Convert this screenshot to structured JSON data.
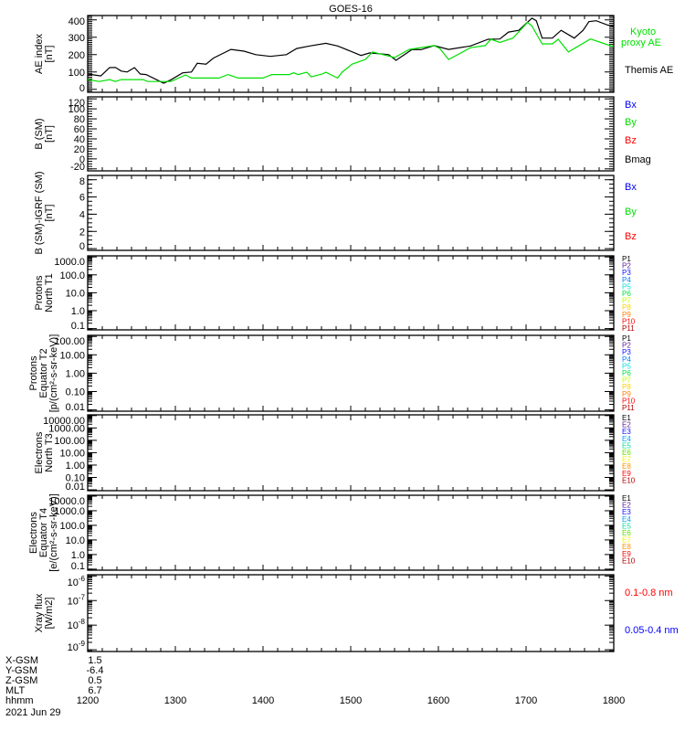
{
  "chart_data": {
    "type": "line",
    "title": "GOES-16",
    "xlabel": "hhmm",
    "x_unit": "minutes after 12:00 UT",
    "xlim": [
      0,
      360
    ],
    "x_ticks": [
      {
        "value": 0,
        "label": "1200"
      },
      {
        "value": 60,
        "label": "1300"
      },
      {
        "value": 120,
        "label": "1400"
      },
      {
        "value": 180,
        "label": "1500"
      },
      {
        "value": 240,
        "label": "1600"
      },
      {
        "value": 300,
        "label": "1700"
      },
      {
        "value": 360,
        "label": "1800"
      }
    ],
    "panels": [
      {
        "id": "ae",
        "ylabel": [
          "AE index",
          "[nT]"
        ],
        "scale": "linear",
        "ylim": [
          -17,
          425
        ],
        "yticks": [
          {
            "v": 0,
            "l": "0"
          },
          {
            "v": 100,
            "l": "100"
          },
          {
            "v": 200,
            "l": "200"
          },
          {
            "v": 300,
            "l": "300"
          },
          {
            "v": 400,
            "l": "400"
          }
        ],
        "minor_step": 10,
        "legend": [
          {
            "label": "Kyoto",
            "color": "#00e000"
          },
          {
            "label": "proxy AE",
            "color": "#00e000"
          },
          {
            "label": "Themis AE",
            "color": "#000000"
          }
        ],
        "series": [
          {
            "name": "Themis AE",
            "color": "#000000",
            "points": [
              [
                0,
                88
              ],
              [
                9,
                77
              ],
              [
                15,
                125
              ],
              [
                19,
                126
              ],
              [
                23,
                105
              ],
              [
                27,
                100
              ],
              [
                32,
                125
              ],
              [
                36,
                88
              ],
              [
                40,
                85
              ],
              [
                52,
                35
              ],
              [
                57,
                55
              ],
              [
                65,
                95
              ],
              [
                71,
                100
              ],
              [
                75,
                150
              ],
              [
                81,
                145
              ],
              [
                86,
                180
              ],
              [
                98,
                230
              ],
              [
                107,
                220
              ],
              [
                115,
                200
              ],
              [
                125,
                190
              ],
              [
                136,
                200
              ],
              [
                143,
                235
              ],
              [
                152,
                250
              ],
              [
                163,
                265
              ],
              [
                171,
                250
              ],
              [
                174,
                240
              ],
              [
                187,
                195
              ],
              [
                193,
                210
              ],
              [
                206,
                200
              ],
              [
                211,
                167
              ],
              [
                222,
                230
              ],
              [
                228,
                228
              ],
              [
                237,
                252
              ],
              [
                247,
                230
              ],
              [
                262,
                250
              ],
              [
                274,
                288
              ],
              [
                282,
                290
              ],
              [
                288,
                330
              ],
              [
                295,
                340
              ],
              [
                304,
                410
              ],
              [
                307,
                395
              ],
              [
                311,
                295
              ],
              [
                318,
                295
              ],
              [
                324,
                340
              ],
              [
                333,
                295
              ],
              [
                339,
                340
              ],
              [
                343,
                390
              ],
              [
                348,
                395
              ],
              [
                356,
                370
              ],
              [
                360,
                365
              ]
            ]
          },
          {
            "name": "Kyoto proxy AE",
            "color": "#00e000",
            "points": [
              [
                0,
                56
              ],
              [
                8,
                45
              ],
              [
                15,
                56
              ],
              [
                19,
                45
              ],
              [
                23,
                56
              ],
              [
                38,
                56
              ],
              [
                41,
                45
              ],
              [
                57,
                45
              ],
              [
                67,
                83
              ],
              [
                71,
                65
              ],
              [
                90,
                65
              ],
              [
                96,
                85
              ],
              [
                103,
                65
              ],
              [
                120,
                65
              ],
              [
                126,
                85
              ],
              [
                138,
                85
              ],
              [
                141,
                95
              ],
              [
                144,
                85
              ],
              [
                150,
                98
              ],
              [
                153,
                72
              ],
              [
                161,
                90
              ],
              [
                163,
                98
              ],
              [
                171,
                65
              ],
              [
                174,
                98
              ],
              [
                181,
                145
              ],
              [
                190,
                172
              ],
              [
                195,
                215
              ],
              [
                210,
                183
              ],
              [
                220,
                230
              ],
              [
                237,
                252
              ],
              [
                241,
                235
              ],
              [
                247,
                172
              ],
              [
                262,
                240
              ],
              [
                272,
                252
              ],
              [
                276,
                288
              ],
              [
                282,
                270
              ],
              [
                291,
                295
              ],
              [
                301,
                385
              ],
              [
                304,
                365
              ],
              [
                311,
                262
              ],
              [
                318,
                262
              ],
              [
                322,
                288
              ],
              [
                329,
                215
              ],
              [
                335,
                245
              ],
              [
                344,
                290
              ],
              [
                354,
                262
              ],
              [
                360,
                245
              ]
            ]
          }
        ]
      },
      {
        "id": "bsm",
        "ylabel": [
          "B (SM)",
          "[nT]"
        ],
        "scale": "linear",
        "ylim": [
          -24,
          124
        ],
        "yticks": [
          {
            "v": -20,
            "l": "-20"
          },
          {
            "v": 0,
            "l": "0"
          },
          {
            "v": 20,
            "l": "20"
          },
          {
            "v": 40,
            "l": "40"
          },
          {
            "v": 60,
            "l": "60"
          },
          {
            "v": 80,
            "l": "80"
          },
          {
            "v": 100,
            "l": "100"
          },
          {
            "v": 120,
            "l": "120"
          }
        ],
        "minor_step": 5,
        "legend": [
          {
            "label": "Bx",
            "color": "#0000ff"
          },
          {
            "label": "By",
            "color": "#00e000"
          },
          {
            "label": "Bz",
            "color": "#ff0000"
          },
          {
            "label": "Bmag",
            "color": "#000000"
          }
        ],
        "series": []
      },
      {
        "id": "bigrf",
        "ylabel": [
          "B (SM)-IGRF (SM)",
          "[nT]"
        ],
        "scale": "linear",
        "ylim": [
          -0.2,
          8.5
        ],
        "yticks": [
          {
            "v": 0,
            "l": "0"
          },
          {
            "v": 2,
            "l": "2"
          },
          {
            "v": 4,
            "l": "4"
          },
          {
            "v": 6,
            "l": "6"
          },
          {
            "v": 8,
            "l": "8"
          }
        ],
        "minor_step": 0.5,
        "legend": [
          {
            "label": "Bx",
            "color": "#0000ff"
          },
          {
            "label": "By",
            "color": "#00e000"
          },
          {
            "label": "Bz",
            "color": "#ff0000"
          }
        ],
        "series": []
      },
      {
        "id": "p-t1",
        "ylabel": [
          "Protons",
          "North T1"
        ],
        "scale": "log",
        "ylim": [
          0.085,
          1150
        ],
        "yticks": [
          {
            "v": 0.1,
            "l": "0.1"
          },
          {
            "v": 1,
            "l": "1.0"
          },
          {
            "v": 10,
            "l": "10.0"
          },
          {
            "v": 100,
            "l": "100.0"
          },
          {
            "v": 1000,
            "l": "1000.0"
          }
        ],
        "legend": [
          {
            "label": "P1",
            "color": "#000000"
          },
          {
            "label": "P2",
            "color": "#5a1a9a"
          },
          {
            "label": "P3",
            "color": "#1010ff"
          },
          {
            "label": "P4",
            "color": "#0080ff"
          },
          {
            "label": "P5",
            "color": "#00e0e0"
          },
          {
            "label": "P6",
            "color": "#00e040"
          },
          {
            "label": "P7",
            "color": "#c0ff00"
          },
          {
            "label": "P8",
            "color": "#ffd000"
          },
          {
            "label": "P9",
            "color": "#ff8000"
          },
          {
            "label": "P10",
            "color": "#ff0000"
          },
          {
            "label": "P11",
            "color": "#b00000"
          }
        ],
        "series": []
      },
      {
        "id": "p-t2",
        "ylabel": [
          "Protons",
          "Equator T2",
          "[p/(cm²-s-sr-keV)]"
        ],
        "scale": "log",
        "ylim": [
          0.0085,
          115
        ],
        "yticks": [
          {
            "v": 0.01,
            "l": "0.01"
          },
          {
            "v": 0.1,
            "l": "0.10"
          },
          {
            "v": 1,
            "l": "1.00"
          },
          {
            "v": 10,
            "l": "10.00"
          },
          {
            "v": 100,
            "l": "100.00"
          }
        ],
        "legend": [
          {
            "label": "P1",
            "color": "#000000"
          },
          {
            "label": "P2",
            "color": "#5a1a9a"
          },
          {
            "label": "P3",
            "color": "#1010ff"
          },
          {
            "label": "P4",
            "color": "#0080ff"
          },
          {
            "label": "P5",
            "color": "#00e0e0"
          },
          {
            "label": "P6",
            "color": "#00e040"
          },
          {
            "label": "P7",
            "color": "#c0ff00"
          },
          {
            "label": "P8",
            "color": "#ffd000"
          },
          {
            "label": "P9",
            "color": "#ff8000"
          },
          {
            "label": "P10",
            "color": "#ff0000"
          },
          {
            "label": "P11",
            "color": "#b00000"
          }
        ],
        "series": []
      },
      {
        "id": "e-t3",
        "ylabel": [
          "Electrons",
          "North T3"
        ],
        "scale": "log",
        "ylim": [
          0.0085,
          11500
        ],
        "yticks": [
          {
            "v": 0.01,
            "l": "0.01"
          },
          {
            "v": 0.1,
            "l": "0.10"
          },
          {
            "v": 1,
            "l": "1.00"
          },
          {
            "v": 10,
            "l": "10.00"
          },
          {
            "v": 100,
            "l": "100.00"
          },
          {
            "v": 1000,
            "l": "1000.00"
          },
          {
            "v": 10000,
            "l": "10000.00"
          }
        ],
        "legend": [
          {
            "label": "E1",
            "color": "#000000"
          },
          {
            "label": "E2",
            "color": "#5a1a9a"
          },
          {
            "label": "E3",
            "color": "#1010ff"
          },
          {
            "label": "E4",
            "color": "#00a0ff"
          },
          {
            "label": "E5",
            "color": "#00e0a0"
          },
          {
            "label": "E6",
            "color": "#60e000"
          },
          {
            "label": "E7",
            "color": "#f0f000"
          },
          {
            "label": "E8",
            "color": "#ff9000"
          },
          {
            "label": "E9",
            "color": "#ff0000"
          },
          {
            "label": "E10",
            "color": "#b00000"
          }
        ],
        "series": []
      },
      {
        "id": "e-t4",
        "ylabel": [
          "Electrons",
          "Equator T4",
          "[e/(cm²-s-sr-keV)]"
        ],
        "scale": "log",
        "ylim": [
          0.085,
          11500
        ],
        "yticks": [
          {
            "v": 0.1,
            "l": "0.1"
          },
          {
            "v": 1,
            "l": "1.0"
          },
          {
            "v": 10,
            "l": "10.0"
          },
          {
            "v": 100,
            "l": "100.0"
          },
          {
            "v": 1000,
            "l": "1000.0"
          },
          {
            "v": 10000,
            "l": "10000.0"
          }
        ],
        "legend": [
          {
            "label": "E1",
            "color": "#000000"
          },
          {
            "label": "E2",
            "color": "#5a1a9a"
          },
          {
            "label": "E3",
            "color": "#1010ff"
          },
          {
            "label": "E4",
            "color": "#00a0ff"
          },
          {
            "label": "E5",
            "color": "#00e0a0"
          },
          {
            "label": "E6",
            "color": "#60e000"
          },
          {
            "label": "E7",
            "color": "#f0f000"
          },
          {
            "label": "E8",
            "color": "#ff9000"
          },
          {
            "label": "E9",
            "color": "#ff0000"
          },
          {
            "label": "E10",
            "color": "#b00000"
          }
        ],
        "series": []
      },
      {
        "id": "xray",
        "ylabel": [
          "Xray flux",
          "[W/m2]"
        ],
        "scale": "log",
        "ylim": [
          8.5e-10,
          1.12e-06
        ],
        "yticks": [
          {
            "v": 1e-09,
            "l": "10",
            "e": "-9"
          },
          {
            "v": 1e-08,
            "l": "10",
            "e": "-8"
          },
          {
            "v": 1e-07,
            "l": "10",
            "e": "-7"
          },
          {
            "v": 1e-06,
            "l": "10",
            "e": "-6"
          }
        ],
        "legend": [
          {
            "label": "0.1-0.8 nm",
            "color": "#ff0000"
          },
          {
            "label": "0.05-0.4 nm",
            "color": "#0000ff"
          }
        ],
        "series": []
      }
    ],
    "footer": {
      "rows": [
        {
          "label": "X-GSM",
          "value": "1.5"
        },
        {
          "label": "Y-GSM",
          "value": "-6.4"
        },
        {
          "label": "Z-GSM",
          "value": "0.5"
        },
        {
          "label": "MLT",
          "value": "6.7"
        },
        {
          "label": "hhmm",
          "value": ""
        }
      ],
      "date": "2021 Jun 29"
    }
  }
}
